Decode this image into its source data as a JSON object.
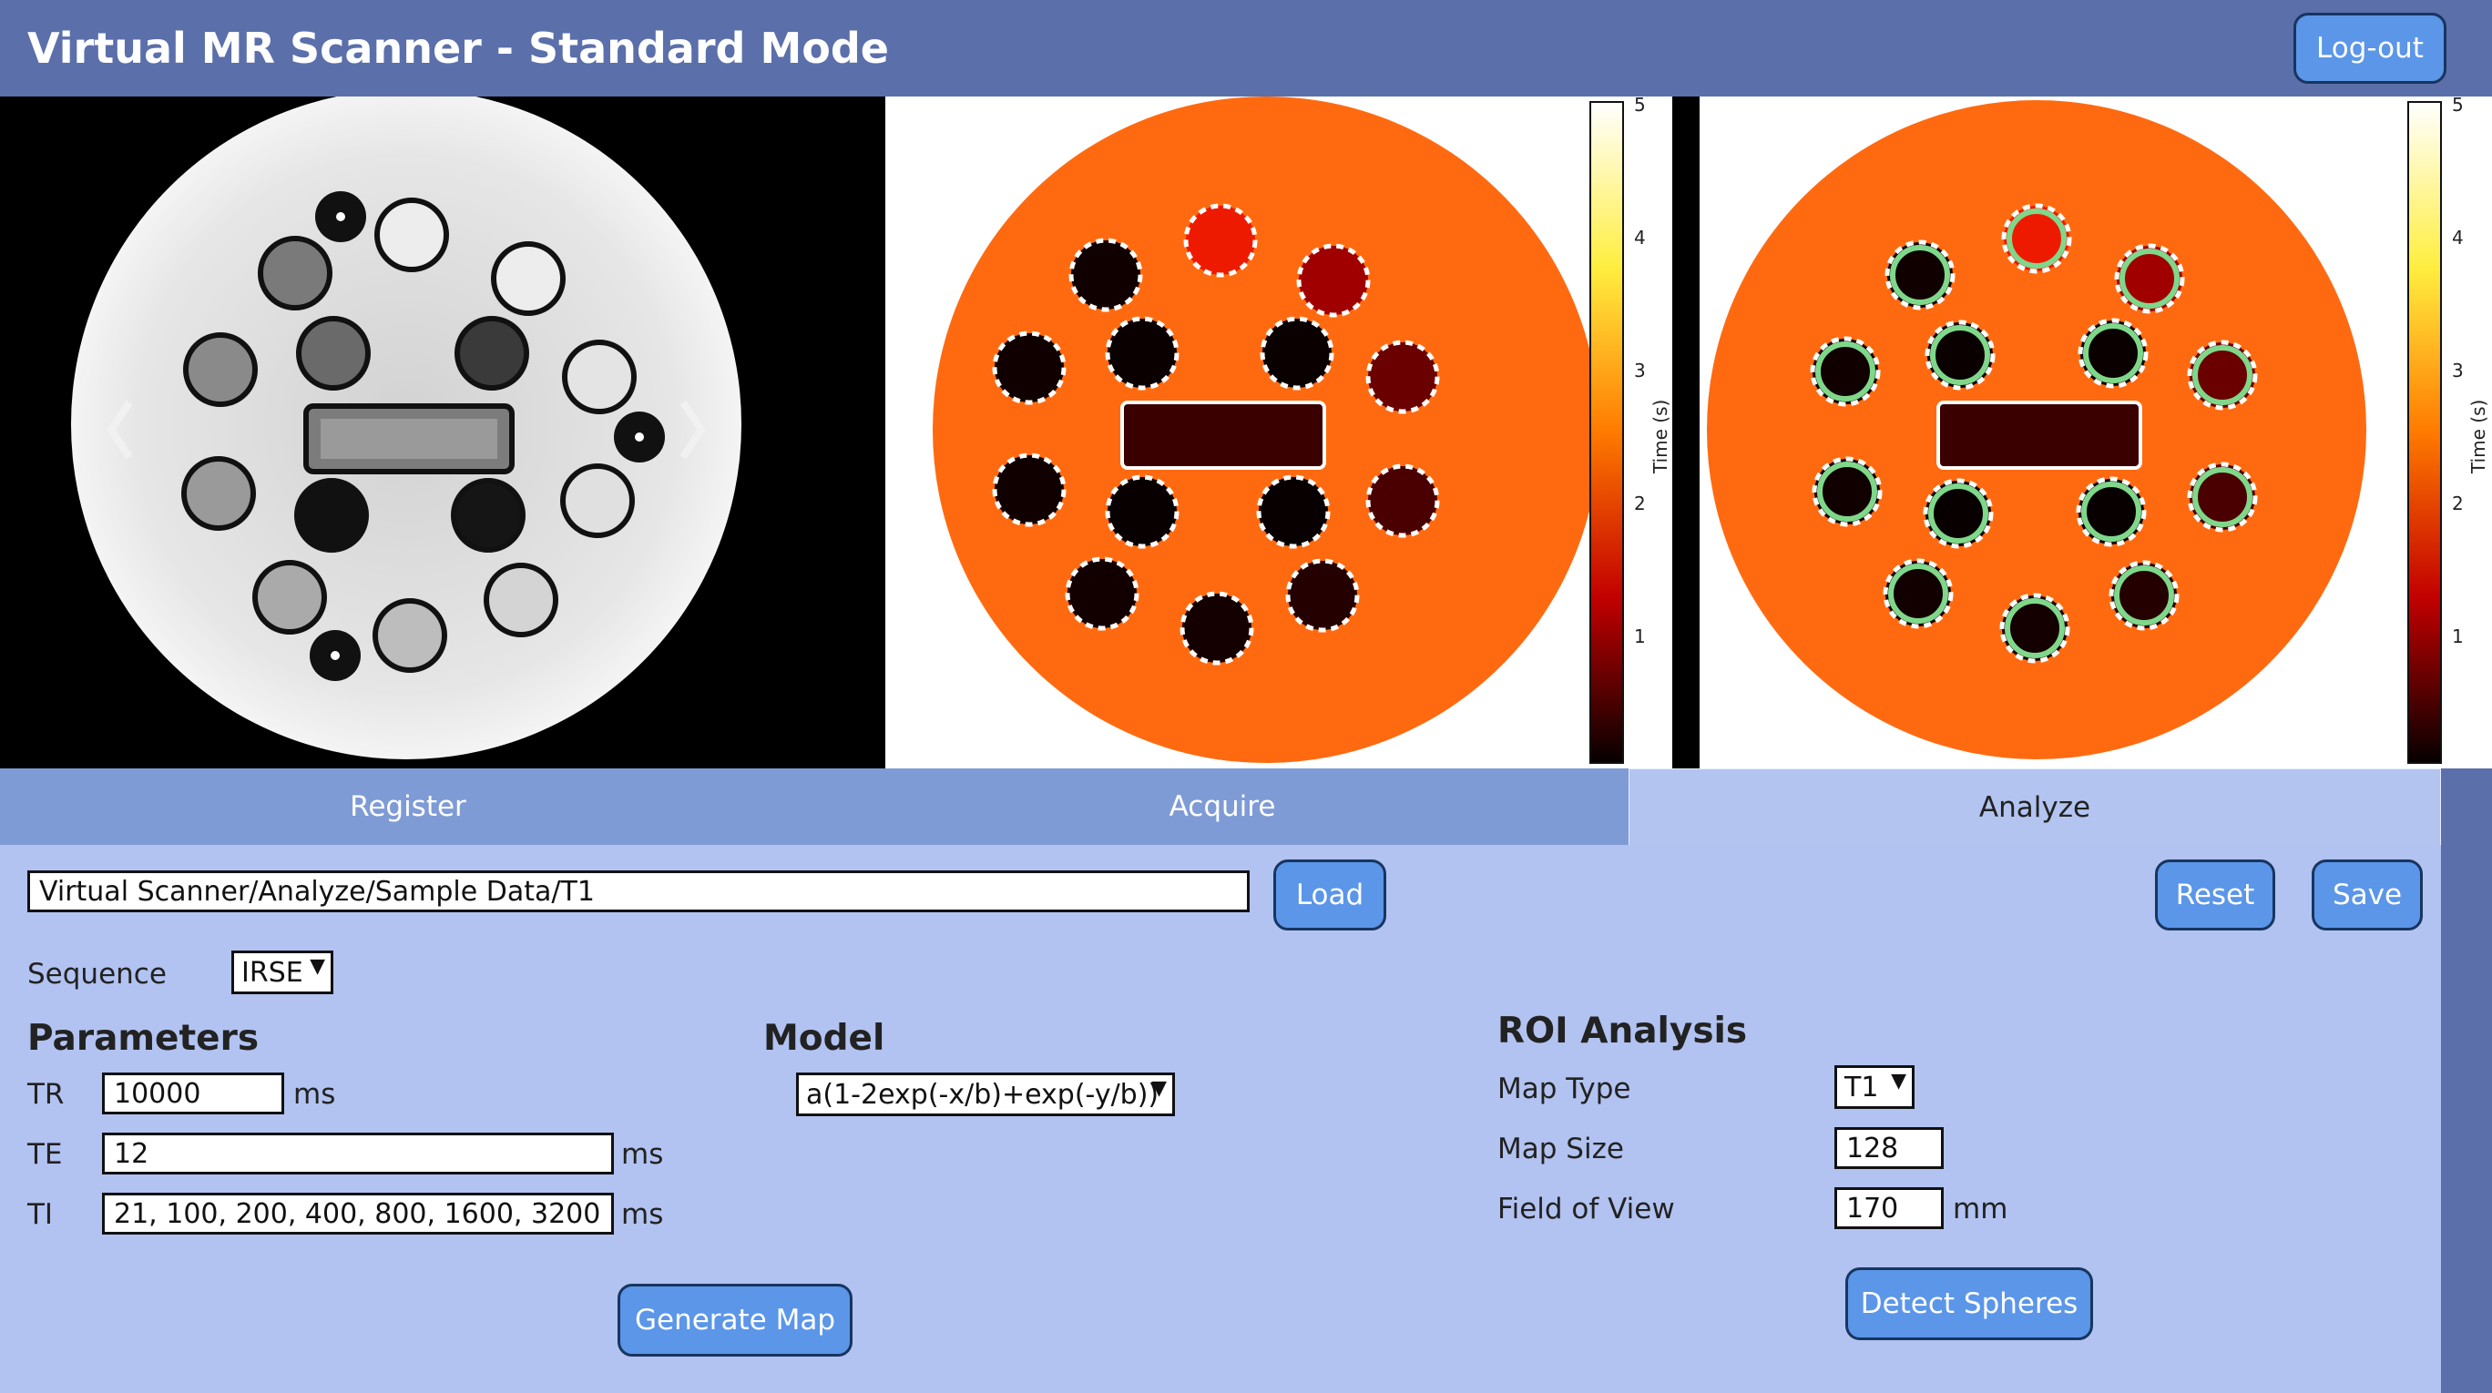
{
  "header": {
    "title": "Virtual MR Scanner - Standard Mode",
    "logout_label": "Log-out"
  },
  "viewer": {
    "prev_icon": "chevron-left-icon",
    "next_icon": "chevron-right-icon",
    "colorbar_label": "Time (s)",
    "colorbar_ticks": [
      "5",
      "4",
      "3",
      "2",
      "1"
    ]
  },
  "tabs": [
    {
      "label": "Register",
      "active": false
    },
    {
      "label": "Acquire",
      "active": false
    },
    {
      "label": "Analyze",
      "active": true
    }
  ],
  "analyze": {
    "path_value": "Virtual Scanner/Analyze/Sample Data/T1",
    "load_label": "Load",
    "reset_label": "Reset",
    "save_label": "Save",
    "sequence_label": "Sequence",
    "sequence_value": "IRSE",
    "parameters_heading": "Parameters",
    "tr_label": "TR",
    "tr_value": "10000",
    "tr_unit": "ms",
    "te_label": "TE",
    "te_value": "12",
    "te_unit": "ms",
    "ti_label": "TI",
    "ti_value": "21, 100, 200, 400, 800, 1600, 3200",
    "ti_unit": "ms",
    "model_heading": "Model",
    "model_value": "a(1-2exp(-x/b)+exp(-y/b))",
    "generate_label": "Generate Map",
    "roi_heading": "ROI Analysis",
    "map_type_label": "Map Type",
    "map_type_value": "T1",
    "map_size_label": "Map Size",
    "map_size_value": "128",
    "fov_label": "Field of View",
    "fov_value": "170",
    "fov_unit": "mm",
    "detect_label": "Detect Spheres"
  },
  "colors": {
    "header": "#5b6faa",
    "content": "#b2c3f1",
    "tabs": "#7f9bd5",
    "button": "#5b96e8",
    "map_bg": "#ff6a10"
  }
}
